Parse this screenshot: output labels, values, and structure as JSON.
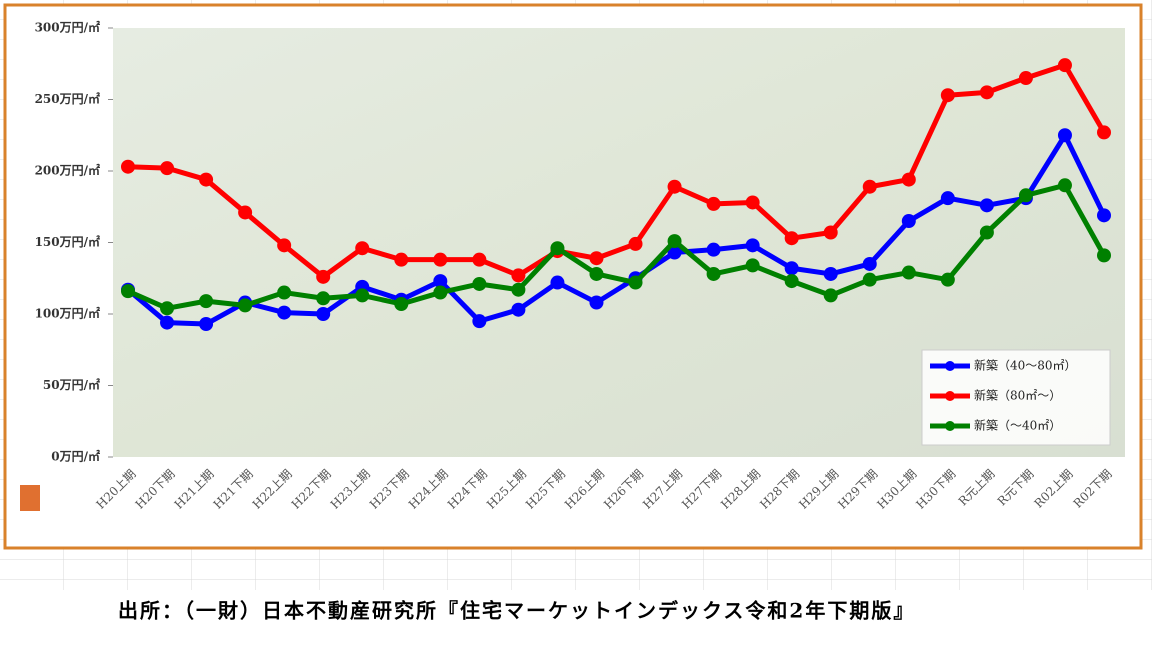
{
  "chart_data": {
    "type": "line",
    "categories": [
      "H20上期",
      "H20下期",
      "H21上期",
      "H21下期",
      "H22上期",
      "H22下期",
      "H23上期",
      "H23下期",
      "H24上期",
      "H24下期",
      "H25上期",
      "H25下期",
      "H26上期",
      "H26下期",
      "H27上期",
      "H27下期",
      "H28上期",
      "H28下期",
      "H29上期",
      "H29下期",
      "H30上期",
      "H30下期",
      "R元上期",
      "R元下期",
      "R02上期",
      "R02下期"
    ],
    "series": [
      {
        "name": "新築（40～80㎡）",
        "color": "#0000ff",
        "values": [
          117,
          94,
          93,
          108,
          101,
          100,
          119,
          110,
          123,
          95,
          103,
          122,
          108,
          125,
          143,
          145,
          148,
          132,
          128,
          135,
          165,
          181,
          176,
          181,
          225,
          169
        ]
      },
      {
        "name": "新築（80㎡～）",
        "color": "#ff0000",
        "values": [
          203,
          202,
          194,
          171,
          148,
          126,
          146,
          138,
          138,
          138,
          127,
          144,
          139,
          149,
          189,
          177,
          178,
          153,
          157,
          189,
          194,
          253,
          255,
          265,
          274,
          227
        ]
      },
      {
        "name": "新築（～40㎡）",
        "color": "#008000",
        "values": [
          116,
          104,
          109,
          106,
          115,
          111,
          113,
          107,
          115,
          121,
          117,
          146,
          128,
          122,
          151,
          128,
          134,
          123,
          113,
          124,
          129,
          124,
          157,
          183,
          190,
          141
        ]
      }
    ],
    "ylim": [
      0,
      300
    ],
    "yticks": [
      {
        "value": 0,
        "label": "0万円/㎡"
      },
      {
        "value": 50,
        "label": "50万円/㎡"
      },
      {
        "value": 100,
        "label": "100万円/㎡"
      },
      {
        "value": 150,
        "label": "150万円/㎡"
      },
      {
        "value": 200,
        "label": "200万円/㎡"
      },
      {
        "value": 250,
        "label": "250万円/㎡"
      },
      {
        "value": 300,
        "label": "300万円/㎡"
      }
    ],
    "legend": "lower right",
    "source": "出所：（一財）日本不動産研究所『住宅マーケットインデックス令和2年下期版』"
  }
}
